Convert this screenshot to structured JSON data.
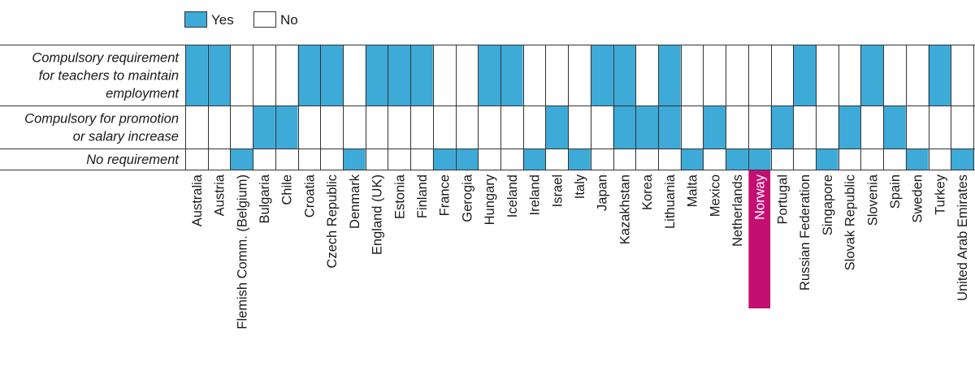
{
  "colors": {
    "yes": "#3daad8",
    "no": "#ffffff",
    "grid": "#333333",
    "highlight": "#c30f71"
  },
  "legend": {
    "yes_label": "Yes",
    "no_label": "No"
  },
  "chart_data": {
    "type": "heatmap",
    "title": "",
    "rows": [
      {
        "label_lines": [
          "Compulsory requirement",
          "for teachers to maintain",
          "employment"
        ]
      },
      {
        "label_lines": [
          "Compulsory for promotion",
          "or salary increase"
        ]
      },
      {
        "label_lines": [
          "No requirement"
        ]
      }
    ],
    "columns": [
      "Australia",
      "Austria",
      "Flemish Comm. (Belgium)",
      "Bulgaria",
      "Chile",
      "Croatia",
      "Czech Republic",
      "Denmark",
      "England (UK)",
      "Estonia",
      "Finland",
      "France",
      "Gerogia",
      "Hungary",
      "Iceland",
      "Ireland",
      "Israel",
      "Italy",
      "Japan",
      "Kazakhstan",
      "Korea",
      "Lithuania",
      "Malta",
      "Mexico",
      "Netherlands",
      "Norway",
      "Portugal",
      "Russian Federation",
      "Singapore",
      "Slovak Republic",
      "Slovenia",
      "Spain",
      "Sweden",
      "Turkey",
      "United Arab Emirates"
    ],
    "highlight_column": "Norway",
    "values": [
      [
        1,
        1,
        0,
        0,
        0,
        1,
        1,
        0,
        1,
        1,
        1,
        0,
        0,
        1,
        1,
        0,
        0,
        0,
        1,
        1,
        0,
        1,
        0,
        0,
        0,
        0,
        0,
        1,
        0,
        0,
        1,
        0,
        0,
        1,
        0
      ],
      [
        0,
        0,
        0,
        1,
        1,
        0,
        0,
        0,
        0,
        0,
        0,
        0,
        0,
        0,
        0,
        0,
        1,
        0,
        0,
        1,
        1,
        1,
        0,
        1,
        0,
        0,
        1,
        0,
        0,
        1,
        0,
        1,
        0,
        0,
        0
      ],
      [
        0,
        0,
        1,
        0,
        0,
        0,
        0,
        1,
        0,
        0,
        0,
        1,
        1,
        0,
        0,
        1,
        0,
        1,
        0,
        0,
        0,
        0,
        1,
        0,
        1,
        1,
        0,
        0,
        1,
        0,
        0,
        0,
        1,
        0,
        1
      ]
    ],
    "legend": [
      "Yes",
      "No"
    ],
    "legend_position": "top-left"
  }
}
